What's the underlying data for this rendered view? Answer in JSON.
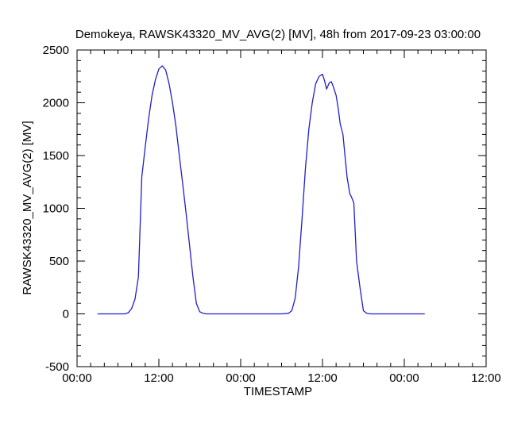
{
  "chart_data": {
    "type": "line",
    "title": "Demokeya, RAWSK43320_MV_AVG(2) [MV], 48h from  2017-09-23 03:00:00",
    "xlabel": "TIMESTAMP",
    "ylabel": "RAWSK43320_MV_AVG(2) [MV]",
    "xlim": [
      0,
      60
    ],
    "ylim": [
      -500,
      2500
    ],
    "x_ticks": [
      {
        "value": 0,
        "label": "00:00"
      },
      {
        "value": 12,
        "label": "12:00"
      },
      {
        "value": 24,
        "label": "00:00"
      },
      {
        "value": 36,
        "label": "12:00"
      },
      {
        "value": 48,
        "label": "00:00"
      },
      {
        "value": 60,
        "label": "12:00"
      }
    ],
    "y_ticks": [
      {
        "value": -500,
        "label": "-500"
      },
      {
        "value": 0,
        "label": "0"
      },
      {
        "value": 500,
        "label": "500"
      },
      {
        "value": 1000,
        "label": "1000"
      },
      {
        "value": 1500,
        "label": "1500"
      },
      {
        "value": 2000,
        "label": "2000"
      },
      {
        "value": 2500,
        "label": "2500"
      }
    ],
    "x_minor_step": 2,
    "y_minor_step": 100,
    "grid": false,
    "legend": "none",
    "series": [
      {
        "color": "#1f1fcc",
        "x": [
          3,
          4,
          5,
          6,
          7,
          7.5,
          8,
          8.5,
          9,
          9.5,
          10,
          10.5,
          11,
          11.5,
          12,
          12.5,
          13,
          13.5,
          14,
          14.5,
          15,
          15.5,
          16,
          16.5,
          17,
          17.5,
          18,
          18.5,
          19,
          20,
          22,
          24,
          26,
          28,
          30,
          31,
          31.5,
          32,
          32.5,
          33,
          33.5,
          34,
          34.5,
          35,
          35.5,
          36,
          36.3,
          36.6,
          37,
          37.3,
          37.6,
          38,
          38.3,
          38.6,
          39,
          39.3,
          39.6,
          40,
          40.3,
          40.6,
          41,
          41.5,
          42,
          42.5,
          43,
          44,
          46,
          48,
          50,
          51
        ],
        "y": [
          0,
          0,
          0,
          0,
          0,
          10,
          50,
          140,
          350,
          1300,
          1580,
          1850,
          2070,
          2220,
          2320,
          2350,
          2310,
          2180,
          2000,
          1780,
          1500,
          1230,
          950,
          650,
          350,
          100,
          20,
          5,
          0,
          0,
          0,
          0,
          0,
          0,
          0,
          5,
          30,
          150,
          450,
          900,
          1380,
          1750,
          2000,
          2180,
          2250,
          2270,
          2210,
          2130,
          2190,
          2200,
          2150,
          2070,
          1950,
          1800,
          1700,
          1500,
          1300,
          1140,
          1100,
          1050,
          500,
          250,
          30,
          5,
          0,
          0,
          0,
          0,
          0,
          0
        ]
      }
    ]
  }
}
